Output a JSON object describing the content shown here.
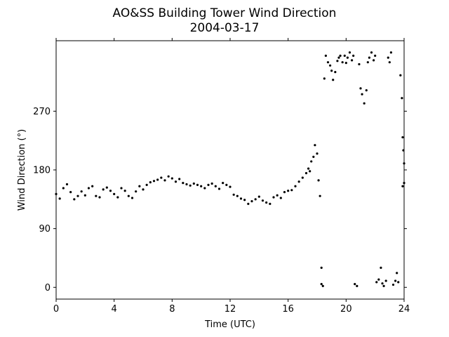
{
  "chart_data": {
    "type": "scatter",
    "title": "AO&SS Building Tower Wind Direction",
    "subtitle": "2004-03-17",
    "xlabel": "Time (UTC)",
    "ylabel": "Wind Direction (°)",
    "xlim": [
      0,
      24
    ],
    "ylim": [
      -18,
      378
    ],
    "xticks": [
      0,
      4,
      8,
      12,
      16,
      20,
      24
    ],
    "yticks": [
      0,
      90,
      180,
      270
    ],
    "grid": false,
    "marker_color": "#000000",
    "series": [
      {
        "x": [
          0.0,
          0.25,
          0.5,
          0.75,
          1.0,
          1.25,
          1.5,
          1.75,
          2.0,
          2.25,
          2.5,
          2.75,
          3.0,
          3.25,
          3.5,
          3.75,
          4.0,
          4.25,
          4.5,
          4.75,
          5.0,
          5.25,
          5.5,
          5.75,
          6.0,
          6.25,
          6.5,
          6.75,
          7.0,
          7.25,
          7.5,
          7.75,
          8.0,
          8.25,
          8.5,
          8.75,
          9.0,
          9.25,
          9.5,
          9.75,
          10.0,
          10.25,
          10.5,
          10.75,
          11.0,
          11.25,
          11.5,
          11.75,
          12.0,
          12.25,
          12.5,
          12.75,
          13.0,
          13.25,
          13.5,
          13.75,
          14.0,
          14.25,
          14.5,
          14.75,
          15.0,
          15.25,
          15.5,
          15.75,
          16.0,
          16.25,
          16.5,
          16.75,
          17.0,
          17.25,
          17.4,
          17.5,
          17.6,
          17.75,
          17.85,
          18.0,
          18.1,
          18.2,
          18.3,
          18.3,
          18.4,
          18.5,
          18.6,
          18.75,
          18.9,
          19.0,
          19.1,
          19.25,
          19.4,
          19.5,
          19.6,
          19.75,
          19.9,
          20.0,
          20.1,
          20.25,
          20.4,
          20.5,
          20.6,
          20.75,
          20.9,
          21.0,
          21.1,
          21.25,
          21.4,
          21.5,
          21.6,
          21.75,
          21.9,
          22.0,
          22.1,
          22.25,
          22.4,
          22.5,
          22.6,
          22.75,
          22.9,
          23.0,
          23.1,
          23.25,
          23.4,
          23.5,
          23.6,
          23.75,
          23.85,
          23.9,
          23.95,
          24.0,
          24.0,
          23.9
        ],
        "y": [
          143,
          136,
          152,
          158,
          146,
          135,
          140,
          147,
          141,
          152,
          155,
          140,
          138,
          150,
          153,
          148,
          143,
          138,
          152,
          148,
          140,
          137,
          147,
          155,
          150,
          157,
          161,
          163,
          165,
          168,
          164,
          170,
          167,
          162,
          166,
          160,
          158,
          156,
          159,
          157,
          155,
          152,
          157,
          159,
          155,
          151,
          160,
          157,
          154,
          142,
          140,
          136,
          134,
          128,
          132,
          135,
          139,
          133,
          130,
          128,
          138,
          141,
          137,
          146,
          148,
          149,
          155,
          162,
          168,
          175,
          182,
          178,
          193,
          200,
          218,
          205,
          164,
          140,
          30,
          5,
          2,
          320,
          355,
          345,
          340,
          332,
          318,
          330,
          347,
          352,
          355,
          345,
          355,
          344,
          352,
          360,
          348,
          355,
          5,
          2,
          342,
          305,
          296,
          282,
          302,
          345,
          352,
          360,
          348,
          355,
          8,
          12,
          30,
          6,
          2,
          10,
          352,
          345,
          360,
          4,
          10,
          22,
          8,
          325,
          290,
          230,
          210,
          190,
          160,
          155
        ]
      }
    ]
  }
}
